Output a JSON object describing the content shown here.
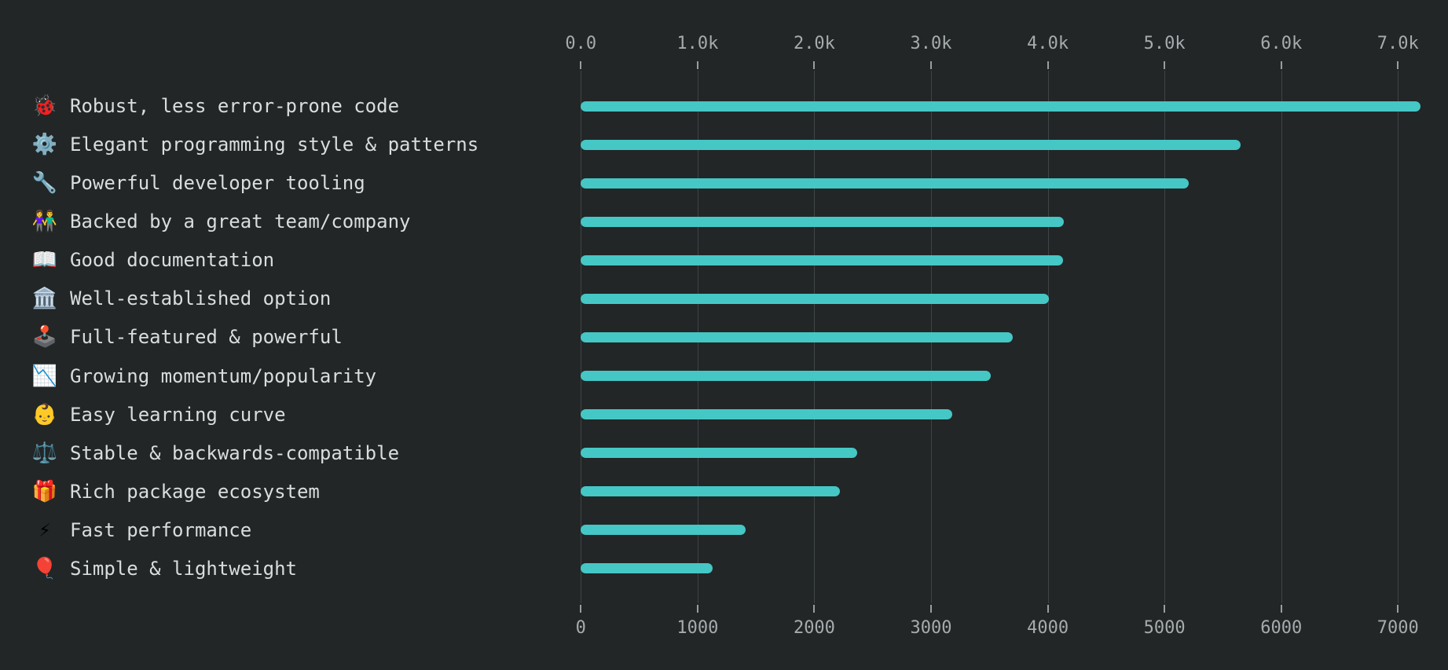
{
  "chart_data": {
    "type": "bar",
    "orientation": "horizontal",
    "title": "",
    "legend": false,
    "grid": true,
    "background_color": "#222627",
    "bar_color": "#45c7c5",
    "gridline_color": "#3f4446",
    "axis_label_color": "#a6abad",
    "category_label_color": "#dadddd",
    "categories": [
      "Robust, less error-prone code",
      "Elegant programming style & patterns",
      "Powerful developer tooling",
      "Backed by a great team/company",
      "Good documentation",
      "Well-established option",
      "Full-featured & powerful",
      "Growing momentum/popularity",
      "Easy learning curve",
      "Stable & backwards-compatible",
      "Rich package ecosystem",
      "Fast performance",
      "Simple & lightweight"
    ],
    "icons": [
      {
        "name": "ladybug-icon",
        "char": "🐞"
      },
      {
        "name": "gear-icon",
        "char": "⚙️"
      },
      {
        "name": "wrench-icon",
        "char": "🔧"
      },
      {
        "name": "couple-icon",
        "char": "👫"
      },
      {
        "name": "open-book-icon",
        "char": "📖"
      },
      {
        "name": "classical-building-icon",
        "char": "🏛️"
      },
      {
        "name": "joystick-icon",
        "char": "🕹️"
      },
      {
        "name": "chart-decreasing-icon",
        "char": "📉"
      },
      {
        "name": "baby-icon",
        "char": "👶"
      },
      {
        "name": "balance-scale-icon",
        "char": "⚖️"
      },
      {
        "name": "gift-icon",
        "char": "🎁"
      },
      {
        "name": "high-voltage-icon",
        "char": "⚡"
      },
      {
        "name": "balloon-icon",
        "char": "🎈"
      }
    ],
    "values": [
      7190,
      5650,
      5210,
      4140,
      4130,
      4010,
      3700,
      3510,
      3180,
      2370,
      2220,
      1410,
      1130
    ],
    "x_axis": {
      "range": [
        0,
        7000
      ],
      "tick_values": [
        0,
        1000,
        2000,
        3000,
        4000,
        5000,
        6000,
        7000
      ],
      "top_tick_labels": [
        "0.0",
        "1.0k",
        "2.0k",
        "3.0k",
        "4.0k",
        "5.0k",
        "6.0k",
        "7.0k"
      ],
      "bottom_tick_labels": [
        "0",
        "1000",
        "2000",
        "3000",
        "4000",
        "5000",
        "6000",
        "7000"
      ]
    }
  }
}
